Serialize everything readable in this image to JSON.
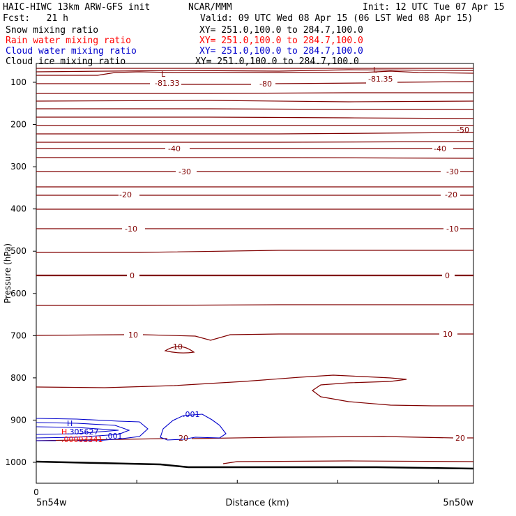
{
  "header": {
    "model": "HAIC-HIWC 13km ARW-GFS init",
    "org": "NCAR/MMM",
    "init": "Init: 12 UTC Tue 07 Apr 15",
    "fcst": "Fcst:   21 h",
    "valid": "Valid: 09 UTC Wed 08 Apr 15 (06 LST Wed 08 Apr 15)",
    "fields": [
      {
        "name": "Snow mixing ratio",
        "xy": "XY= 251.0,100.0 to 284.7,100.0",
        "color": "#000000"
      },
      {
        "name": "Rain water mixing ratio",
        "xy": "XY= 251.0,100.0 to 284.7,100.0",
        "color": "#ff0000"
      },
      {
        "name": "Cloud water mixing ratio",
        "xy": "XY= 251.0,100.0 to 284.7,100.0",
        "color": "#0000cc"
      },
      {
        "name": "Cloud ice mixing ratio",
        "xy": "XY= 251.0,100.0 to 284.7,100.0",
        "color": "#000000"
      }
    ]
  },
  "chart_data": {
    "type": "line",
    "xlabel": "Distance (km)",
    "ylabel": "Pressure (hPa)",
    "y_ticks": [
      100,
      200,
      300,
      400,
      500,
      600,
      700,
      800,
      900,
      1000
    ],
    "x_tick_label": "0",
    "x_left_label": "5n54w",
    "x_right_label": "5n50w",
    "temperature_contour_color": "#800000",
    "temperature_labels": [
      {
        "text": "L",
        "kind": "low"
      },
      {
        "text": "-81.33",
        "kind": "low"
      },
      {
        "text": "-80",
        "kind": "contour"
      },
      {
        "text": "L",
        "kind": "low"
      },
      {
        "text": "-81.35",
        "kind": "low"
      },
      {
        "text": "-50",
        "kind": "contour"
      },
      {
        "text": "-40",
        "kind": "contour"
      },
      {
        "text": "-40",
        "kind": "contour"
      },
      {
        "text": "-30",
        "kind": "contour"
      },
      {
        "text": "-30",
        "kind": "contour"
      },
      {
        "text": "-20",
        "kind": "contour"
      },
      {
        "text": "-20",
        "kind": "contour"
      },
      {
        "text": "-10",
        "kind": "contour"
      },
      {
        "text": "-10",
        "kind": "contour"
      },
      {
        "text": "0",
        "kind": "contour"
      },
      {
        "text": "0",
        "kind": "contour"
      },
      {
        "text": "10",
        "kind": "contour"
      },
      {
        "text": "10",
        "kind": "contour"
      },
      {
        "text": "10",
        "kind": "contour"
      },
      {
        "text": "20",
        "kind": "contour"
      },
      {
        "text": "20",
        "kind": "contour"
      }
    ],
    "cloud_water_labels": [
      {
        "text": "H",
        "color": "#0000cc"
      },
      {
        "text": ".305627",
        "color": "#0000cc"
      },
      {
        "text": ".001",
        "color": "#0000cc"
      },
      {
        "text": ".001",
        "color": "#0000cc"
      }
    ],
    "rain_labels": [
      {
        "text": "H",
        "color": "#ff0000"
      },
      {
        "text": ".00003341",
        "color": "#ff0000"
      }
    ]
  }
}
